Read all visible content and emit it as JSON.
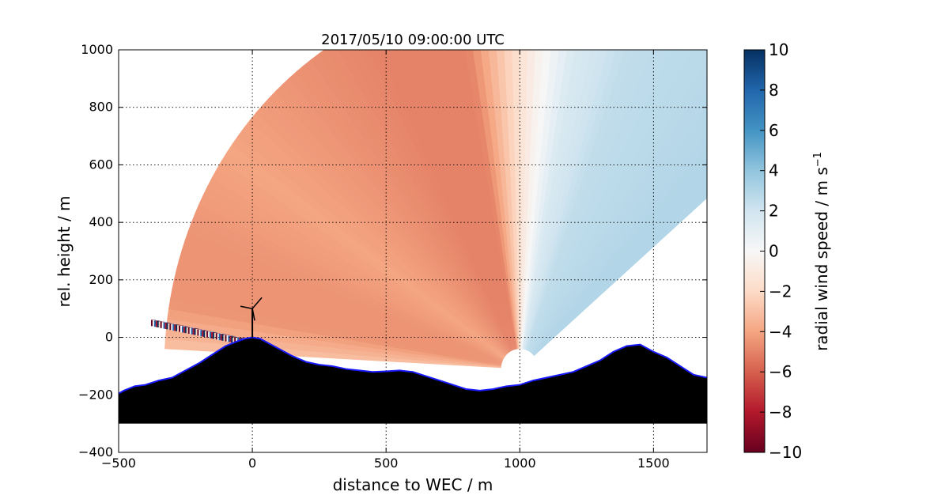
{
  "chart_data": {
    "type": "heatmap",
    "title": "2017/05/10 09:00:00 UTC",
    "xlabel": "distance to WEC / m",
    "ylabel": "rel. height / m",
    "xlim": [
      -500,
      1700
    ],
    "ylim": [
      -400,
      1000
    ],
    "x_ticks": [
      -500,
      0,
      500,
      1000,
      1500
    ],
    "y_ticks": [
      -400,
      -200,
      0,
      200,
      400,
      600,
      800,
      1000
    ],
    "x_tick_labels": [
      "−500",
      "0",
      "500",
      "1000",
      "1500"
    ],
    "y_tick_labels": [
      "−400",
      "−200",
      "0",
      "200",
      "400",
      "600",
      "800",
      "1000"
    ],
    "grid": true,
    "colorbar": {
      "label": "radial wind speed / m s",
      "label_superscript": "−1",
      "range": [
        -10,
        10
      ],
      "ticks": [
        -10,
        -8,
        -6,
        -4,
        -2,
        0,
        2,
        4,
        6,
        8,
        10
      ],
      "tick_labels": [
        "−10",
        "−8",
        "−6",
        "−4",
        "−2",
        "0",
        "2",
        "4",
        "6",
        "8",
        "10"
      ],
      "colormap": "RdBu"
    },
    "scan": {
      "lidar_position": [
        1000,
        -110
      ],
      "min_elevation_deg": 3,
      "max_elevation_deg": 69,
      "max_range_m": 1330,
      "velocity_by_elevation": [
        {
          "elevation_deg": 3,
          "velocity": -3.0
        },
        {
          "elevation_deg": 10,
          "velocity": -4.5
        },
        {
          "elevation_deg": 20,
          "velocity": -4.5
        },
        {
          "elevation_deg": 35,
          "velocity": -4.0
        },
        {
          "elevation_deg": 50,
          "velocity": -4.5
        },
        {
          "elevation_deg": 65,
          "velocity": -5.0
        },
        {
          "elevation_deg": 80,
          "velocity": -5.0
        },
        {
          "elevation_deg": 90,
          "velocity": -1.5
        },
        {
          "elevation_deg": 100,
          "velocity": 1.5
        },
        {
          "elevation_deg": 110,
          "velocity": 2.5
        },
        {
          "elevation_deg": 135,
          "velocity": 3.0
        }
      ]
    },
    "terrain": {
      "x": [
        -500,
        -480,
        -440,
        -400,
        -350,
        -300,
        -250,
        -200,
        -150,
        -100,
        -60,
        -30,
        0,
        30,
        60,
        100,
        150,
        200,
        250,
        300,
        350,
        400,
        450,
        500,
        550,
        600,
        650,
        700,
        750,
        800,
        850,
        900,
        950,
        1000,
        1050,
        1100,
        1150,
        1200,
        1250,
        1300,
        1350,
        1400,
        1450,
        1500,
        1550,
        1600,
        1650,
        1700
      ],
      "y": [
        -195,
        -185,
        -170,
        -165,
        -150,
        -140,
        -115,
        -90,
        -60,
        -30,
        -15,
        -5,
        0,
        -5,
        -20,
        -40,
        -65,
        -85,
        -95,
        -100,
        -110,
        -115,
        -120,
        -118,
        -115,
        -120,
        -135,
        -150,
        -165,
        -180,
        -185,
        -180,
        -170,
        -165,
        -150,
        -140,
        -130,
        -120,
        -100,
        -80,
        -50,
        -30,
        -25,
        -50,
        -70,
        -100,
        -130,
        -140
      ],
      "base": -300,
      "fill_color": "#000000",
      "edge_color": "#1a1aff"
    },
    "turbine": {
      "x": 0,
      "hub_height": 100
    },
    "noisy_band": {
      "x_start": -370,
      "y_start": 50,
      "x_end": -30,
      "y_end": -15
    }
  }
}
